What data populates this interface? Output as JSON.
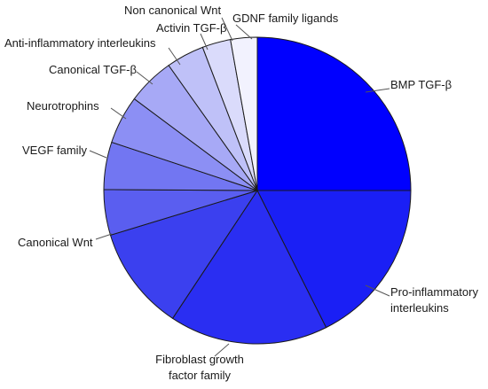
{
  "chart_data": {
    "type": "pie",
    "title": "",
    "start": "12 o'clock, clockwise",
    "legend": "none (category labels with leader lines)",
    "slices": [
      {
        "label": [
          "BMP TGF-β"
        ],
        "value": 25.0,
        "color": "#0000ff"
      },
      {
        "label": [
          "Pro-inflammatory",
          "interleukins"
        ],
        "value": 17.6,
        "color": "#1a1ff5"
      },
      {
        "label": [
          "Fibroblast growth",
          "factor family"
        ],
        "value": 16.7,
        "color": "#2a2ef2"
      },
      {
        "label": [
          "Canonical Wnt"
        ],
        "value": 11.0,
        "color": "#3b40ef"
      },
      {
        "label": [
          "VEGF family"
        ],
        "value": 4.8,
        "color": "#5a5ef0"
      },
      {
        "label": [
          "Neurotrophins"
        ],
        "value": 5.0,
        "color": "#7276f2"
      },
      {
        "label": [
          "Canonical TGF-β"
        ],
        "value": 5.1,
        "color": "#8c8ff4"
      },
      {
        "label": [
          "Anti-inflammatory interleukins"
        ],
        "value": 5.0,
        "color": "#a7a9f6"
      },
      {
        "label": [
          "Activin TGF-β"
        ],
        "value": 4.0,
        "color": "#bfc1f8"
      },
      {
        "label": [
          "Non canonical Wnt"
        ],
        "value": 3.0,
        "color": "#dadbfb"
      },
      {
        "label": [
          "GDNF family ligands"
        ],
        "value": 2.8,
        "color": "#f2f2fe"
      }
    ]
  }
}
